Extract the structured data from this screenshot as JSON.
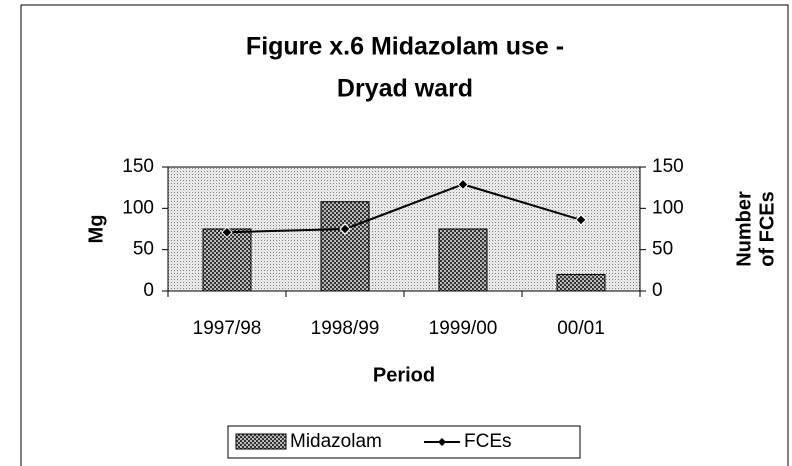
{
  "chart_data": {
    "type": "bar_line",
    "title": [
      "Figure x.6 Midazolam use -",
      "Dryad ward"
    ],
    "x_label": "Period",
    "y_label": "Mg",
    "y2_label": [
      "Number",
      "of FCEs"
    ],
    "categories": [
      "1997/98",
      "1998/99",
      "1999/00",
      "00/01"
    ],
    "series": [
      {
        "name": "Midazolam",
        "type": "bar",
        "color": "#555555",
        "values": [
          75,
          108,
          75,
          20
        ]
      },
      {
        "name": "FCEs",
        "type": "line",
        "color": "#000000",
        "axis": "y2",
        "values": [
          71,
          75,
          129,
          86
        ]
      }
    ],
    "ylim": [
      0,
      150
    ],
    "yticks": [
      0,
      50,
      100,
      150
    ],
    "y2lim": [
      0,
      150
    ],
    "y2ticks": [
      0,
      50,
      100,
      150
    ],
    "legend": "bottom"
  }
}
